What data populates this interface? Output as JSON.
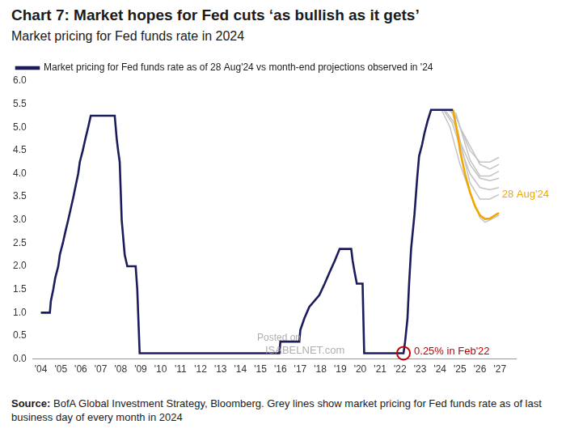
{
  "chart_data": {
    "type": "line",
    "title": "Chart 7: Market hopes for Fed cuts ‘as bullish as it gets’",
    "subtitle": "Market pricing for Fed funds rate in 2024",
    "source": {
      "label": "Source:",
      "text": "BofA Global Investment Strategy, Bloomberg. Grey lines show market pricing for Fed funds rate as of last business day of every month in 2024"
    },
    "watermark": [
      "Posted on",
      "ISABELNET.com"
    ],
    "xlim": [
      2003.6,
      2027.8
    ],
    "xticks": [
      {
        "value": 2004,
        "label": "'04"
      },
      {
        "value": 2005,
        "label": "'05"
      },
      {
        "value": 2006,
        "label": "'06"
      },
      {
        "value": 2007,
        "label": "'07"
      },
      {
        "value": 2008,
        "label": "'08"
      },
      {
        "value": 2009,
        "label": "'09"
      },
      {
        "value": 2010,
        "label": "'10"
      },
      {
        "value": 2011,
        "label": "'11"
      },
      {
        "value": 2012,
        "label": "'12"
      },
      {
        "value": 2013,
        "label": "'13"
      },
      {
        "value": 2014,
        "label": "'14"
      },
      {
        "value": 2015,
        "label": "'15"
      },
      {
        "value": 2016,
        "label": "'16"
      },
      {
        "value": 2017,
        "label": "'17"
      },
      {
        "value": 2018,
        "label": "'18"
      },
      {
        "value": 2019,
        "label": "'19"
      },
      {
        "value": 2020,
        "label": "'20"
      },
      {
        "value": 2021,
        "label": "'21"
      },
      {
        "value": 2022,
        "label": "'22"
      },
      {
        "value": 2023,
        "label": "'23"
      },
      {
        "value": 2024,
        "label": "'24"
      },
      {
        "value": 2025,
        "label": "'25"
      },
      {
        "value": 2026,
        "label": "'26"
      },
      {
        "value": 2027,
        "label": "'27"
      }
    ],
    "ylim": [
      0,
      6
    ],
    "yticks": [
      {
        "value": 0,
        "label": "0.0"
      },
      0.5,
      {
        "value": 1,
        "label": "1.0"
      },
      1.5,
      {
        "value": 2,
        "label": "2.0"
      },
      2.5,
      {
        "value": 3,
        "label": "3.0"
      },
      3.5,
      {
        "value": 4,
        "label": "4.0"
      },
      4.5,
      {
        "value": 5,
        "label": "5.0"
      },
      5.5,
      {
        "value": 6,
        "label": "6.0"
      }
    ],
    "grid": false,
    "legend": "top-left",
    "series": [
      {
        "name": "Market pricing for Fed funds rate as of 28 Aug'24 vs month-end projections observed in '24",
        "color": "#1c1c5c",
        "x": [
          2004.0,
          2004.45,
          2004.5,
          2004.62,
          2004.72,
          2004.87,
          2004.95,
          2005.1,
          2005.23,
          2005.37,
          2005.5,
          2005.63,
          2005.75,
          2005.87,
          2005.95,
          2006.1,
          2006.23,
          2006.37,
          2006.5,
          2007.7,
          2007.8,
          2007.87,
          2007.95,
          2008.05,
          2008.2,
          2008.33,
          2008.75,
          2008.83,
          2008.95,
          2015.95,
          2016.0,
          2016.95,
          2017.0,
          2017.2,
          2017.45,
          2017.95,
          2018.22,
          2018.47,
          2018.73,
          2018.97,
          2019.55,
          2019.62,
          2019.72,
          2019.83,
          2020.12,
          2020.2,
          2022.17,
          2022.25,
          2022.37,
          2022.45,
          2022.55,
          2022.72,
          2022.85,
          2022.95,
          2023.1,
          2023.22,
          2023.37,
          2023.55,
          2024.65
        ],
        "values": [
          1.0,
          1.0,
          1.25,
          1.5,
          1.75,
          2.0,
          2.25,
          2.5,
          2.75,
          3.0,
          3.25,
          3.5,
          3.75,
          4.0,
          4.25,
          4.5,
          4.75,
          5.0,
          5.25,
          5.25,
          4.75,
          4.5,
          4.25,
          3.0,
          2.25,
          2.0,
          2.0,
          1.5,
          0.125,
          0.125,
          0.375,
          0.375,
          0.625,
          0.875,
          1.125,
          1.375,
          1.625,
          1.875,
          2.125,
          2.375,
          2.375,
          2.125,
          1.875,
          1.625,
          1.625,
          0.125,
          0.125,
          0.375,
          0.875,
          1.625,
          2.375,
          3.125,
          3.875,
          4.375,
          4.625,
          4.875,
          5.125,
          5.375,
          5.375
        ]
      },
      {
        "color": "#f0a800",
        "x": [
          2024.65,
          2024.75,
          2024.9,
          2025.0,
          2025.25,
          2025.5,
          2025.75,
          2026.0,
          2026.25,
          2026.5,
          2026.75,
          2026.95
        ],
        "values": [
          5.375,
          5.15,
          4.8,
          4.5,
          4.0,
          3.6,
          3.3,
          3.1,
          3.02,
          3.03,
          3.1,
          3.15
        ]
      },
      {
        "color": "#c4c4c4",
        "x": [
          2024.08,
          2024.5,
          2025.0,
          2025.5,
          2026.0,
          2026.25,
          2026.5,
          2026.95
        ],
        "values": [
          5.375,
          5.0,
          4.2,
          3.6,
          3.05,
          2.95,
          3.0,
          3.1
        ]
      },
      {
        "color": "#c4c4c4",
        "x": [
          2024.17,
          2024.6,
          2025.0,
          2025.5,
          2026.0,
          2026.5,
          2026.95
        ],
        "values": [
          5.375,
          5.1,
          4.6,
          4.0,
          3.7,
          3.65,
          3.7
        ]
      },
      {
        "color": "#c4c4c4",
        "x": [
          2024.25,
          2024.7,
          2025.0,
          2025.5,
          2026.0,
          2026.5,
          2026.95
        ],
        "values": [
          5.375,
          5.1,
          4.7,
          4.2,
          3.9,
          3.85,
          3.9
        ]
      },
      {
        "color": "#c4c4c4",
        "x": [
          2024.33,
          2024.8,
          2025.0,
          2025.5,
          2026.0,
          2026.5,
          2026.95
        ],
        "values": [
          5.375,
          5.3,
          5.0,
          4.6,
          4.2,
          4.1,
          4.2
        ]
      },
      {
        "color": "#c4c4c4",
        "x": [
          2024.42,
          2024.8,
          2025.0,
          2025.5,
          2026.0,
          2026.5,
          2026.95
        ],
        "values": [
          5.375,
          5.25,
          5.0,
          4.5,
          4.25,
          4.25,
          4.35
        ]
      },
      {
        "color": "#c4c4c4",
        "x": [
          2024.5,
          2024.9,
          2025.5,
          2026.0,
          2026.5,
          2026.95
        ],
        "values": [
          5.375,
          5.15,
          4.3,
          3.95,
          3.95,
          4.05
        ]
      },
      {
        "color": "#c4c4c4",
        "x": [
          2024.58,
          2024.9,
          2025.5,
          2026.0,
          2026.5,
          2026.95
        ],
        "values": [
          5.375,
          4.9,
          3.8,
          3.45,
          3.45,
          3.55
        ]
      }
    ],
    "annotations": [
      {
        "text": "0.25% in Feb'22",
        "x": 2022.17,
        "y": 0.125,
        "color": "#c00000",
        "marker": "circle"
      },
      {
        "text": "28 Aug'24",
        "x": 2027.1,
        "y": 3.55,
        "color": "#f0a800"
      }
    ]
  }
}
